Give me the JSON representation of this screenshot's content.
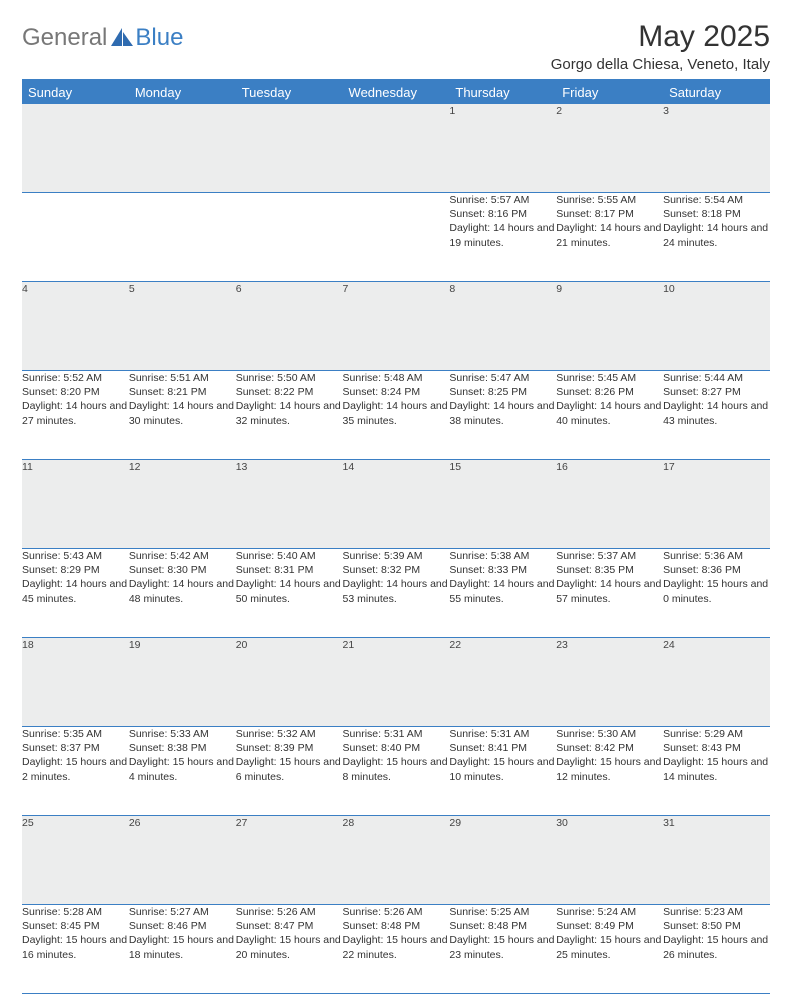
{
  "brand": {
    "part1": "General",
    "part2": "Blue"
  },
  "title": "May 2025",
  "location": "Gorgo della Chiesa, Veneto, Italy",
  "colors": {
    "accent": "#3b7fc4",
    "header_bg": "#3b7fc4",
    "header_text": "#ffffff",
    "daynum_bg": "#eceded",
    "text": "#333333",
    "background": "#ffffff"
  },
  "weekdays": [
    "Sunday",
    "Monday",
    "Tuesday",
    "Wednesday",
    "Thursday",
    "Friday",
    "Saturday"
  ],
  "weeks": [
    [
      {
        "n": "",
        "sr": "",
        "ss": "",
        "dl": ""
      },
      {
        "n": "",
        "sr": "",
        "ss": "",
        "dl": ""
      },
      {
        "n": "",
        "sr": "",
        "ss": "",
        "dl": ""
      },
      {
        "n": "",
        "sr": "",
        "ss": "",
        "dl": ""
      },
      {
        "n": "1",
        "sr": "Sunrise: 5:57 AM",
        "ss": "Sunset: 8:16 PM",
        "dl": "Daylight: 14 hours and 19 minutes."
      },
      {
        "n": "2",
        "sr": "Sunrise: 5:55 AM",
        "ss": "Sunset: 8:17 PM",
        "dl": "Daylight: 14 hours and 21 minutes."
      },
      {
        "n": "3",
        "sr": "Sunrise: 5:54 AM",
        "ss": "Sunset: 8:18 PM",
        "dl": "Daylight: 14 hours and 24 minutes."
      }
    ],
    [
      {
        "n": "4",
        "sr": "Sunrise: 5:52 AM",
        "ss": "Sunset: 8:20 PM",
        "dl": "Daylight: 14 hours and 27 minutes."
      },
      {
        "n": "5",
        "sr": "Sunrise: 5:51 AM",
        "ss": "Sunset: 8:21 PM",
        "dl": "Daylight: 14 hours and 30 minutes."
      },
      {
        "n": "6",
        "sr": "Sunrise: 5:50 AM",
        "ss": "Sunset: 8:22 PM",
        "dl": "Daylight: 14 hours and 32 minutes."
      },
      {
        "n": "7",
        "sr": "Sunrise: 5:48 AM",
        "ss": "Sunset: 8:24 PM",
        "dl": "Daylight: 14 hours and 35 minutes."
      },
      {
        "n": "8",
        "sr": "Sunrise: 5:47 AM",
        "ss": "Sunset: 8:25 PM",
        "dl": "Daylight: 14 hours and 38 minutes."
      },
      {
        "n": "9",
        "sr": "Sunrise: 5:45 AM",
        "ss": "Sunset: 8:26 PM",
        "dl": "Daylight: 14 hours and 40 minutes."
      },
      {
        "n": "10",
        "sr": "Sunrise: 5:44 AM",
        "ss": "Sunset: 8:27 PM",
        "dl": "Daylight: 14 hours and 43 minutes."
      }
    ],
    [
      {
        "n": "11",
        "sr": "Sunrise: 5:43 AM",
        "ss": "Sunset: 8:29 PM",
        "dl": "Daylight: 14 hours and 45 minutes."
      },
      {
        "n": "12",
        "sr": "Sunrise: 5:42 AM",
        "ss": "Sunset: 8:30 PM",
        "dl": "Daylight: 14 hours and 48 minutes."
      },
      {
        "n": "13",
        "sr": "Sunrise: 5:40 AM",
        "ss": "Sunset: 8:31 PM",
        "dl": "Daylight: 14 hours and 50 minutes."
      },
      {
        "n": "14",
        "sr": "Sunrise: 5:39 AM",
        "ss": "Sunset: 8:32 PM",
        "dl": "Daylight: 14 hours and 53 minutes."
      },
      {
        "n": "15",
        "sr": "Sunrise: 5:38 AM",
        "ss": "Sunset: 8:33 PM",
        "dl": "Daylight: 14 hours and 55 minutes."
      },
      {
        "n": "16",
        "sr": "Sunrise: 5:37 AM",
        "ss": "Sunset: 8:35 PM",
        "dl": "Daylight: 14 hours and 57 minutes."
      },
      {
        "n": "17",
        "sr": "Sunrise: 5:36 AM",
        "ss": "Sunset: 8:36 PM",
        "dl": "Daylight: 15 hours and 0 minutes."
      }
    ],
    [
      {
        "n": "18",
        "sr": "Sunrise: 5:35 AM",
        "ss": "Sunset: 8:37 PM",
        "dl": "Daylight: 15 hours and 2 minutes."
      },
      {
        "n": "19",
        "sr": "Sunrise: 5:33 AM",
        "ss": "Sunset: 8:38 PM",
        "dl": "Daylight: 15 hours and 4 minutes."
      },
      {
        "n": "20",
        "sr": "Sunrise: 5:32 AM",
        "ss": "Sunset: 8:39 PM",
        "dl": "Daylight: 15 hours and 6 minutes."
      },
      {
        "n": "21",
        "sr": "Sunrise: 5:31 AM",
        "ss": "Sunset: 8:40 PM",
        "dl": "Daylight: 15 hours and 8 minutes."
      },
      {
        "n": "22",
        "sr": "Sunrise: 5:31 AM",
        "ss": "Sunset: 8:41 PM",
        "dl": "Daylight: 15 hours and 10 minutes."
      },
      {
        "n": "23",
        "sr": "Sunrise: 5:30 AM",
        "ss": "Sunset: 8:42 PM",
        "dl": "Daylight: 15 hours and 12 minutes."
      },
      {
        "n": "24",
        "sr": "Sunrise: 5:29 AM",
        "ss": "Sunset: 8:43 PM",
        "dl": "Daylight: 15 hours and 14 minutes."
      }
    ],
    [
      {
        "n": "25",
        "sr": "Sunrise: 5:28 AM",
        "ss": "Sunset: 8:45 PM",
        "dl": "Daylight: 15 hours and 16 minutes."
      },
      {
        "n": "26",
        "sr": "Sunrise: 5:27 AM",
        "ss": "Sunset: 8:46 PM",
        "dl": "Daylight: 15 hours and 18 minutes."
      },
      {
        "n": "27",
        "sr": "Sunrise: 5:26 AM",
        "ss": "Sunset: 8:47 PM",
        "dl": "Daylight: 15 hours and 20 minutes."
      },
      {
        "n": "28",
        "sr": "Sunrise: 5:26 AM",
        "ss": "Sunset: 8:48 PM",
        "dl": "Daylight: 15 hours and 22 minutes."
      },
      {
        "n": "29",
        "sr": "Sunrise: 5:25 AM",
        "ss": "Sunset: 8:48 PM",
        "dl": "Daylight: 15 hours and 23 minutes."
      },
      {
        "n": "30",
        "sr": "Sunrise: 5:24 AM",
        "ss": "Sunset: 8:49 PM",
        "dl": "Daylight: 15 hours and 25 minutes."
      },
      {
        "n": "31",
        "sr": "Sunrise: 5:23 AM",
        "ss": "Sunset: 8:50 PM",
        "dl": "Daylight: 15 hours and 26 minutes."
      }
    ]
  ]
}
